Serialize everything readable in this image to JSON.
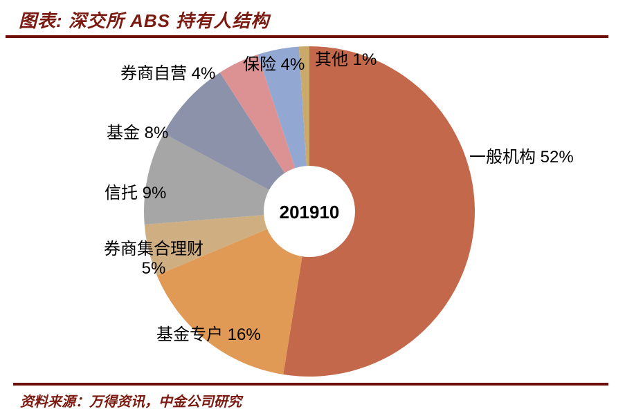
{
  "header": {
    "title": "图表: 深交所 ABS 持有人结构"
  },
  "footer": {
    "source": "资料来源：万得资讯，中金公司研究"
  },
  "colors": {
    "accent_maroon": "#7b1a10",
    "rule_maroon": "#6e0f08",
    "label_text": "#000000",
    "background": "#ffffff"
  },
  "chart_data": {
    "type": "pie",
    "donut": true,
    "title": "深交所 ABS 持有人结构",
    "center_label": "201910",
    "unit": "%",
    "start_angle_deg": 0,
    "direction": "clockwise",
    "legend_position": "none",
    "slices": [
      {
        "name": "一般机构",
        "value_pct": 52,
        "label": "一般机构 52%",
        "color": "#c4684b"
      },
      {
        "name": "基金专户",
        "value_pct": 16,
        "label": "基金专户 16%",
        "color": "#e19a56"
      },
      {
        "name": "券商集合理财",
        "value_pct": 5,
        "label": "券商集合理财 5%",
        "color": "#cfae82"
      },
      {
        "name": "信托",
        "value_pct": 9,
        "label": "信托 9%",
        "color": "#a6a6a6"
      },
      {
        "name": "基金",
        "value_pct": 8,
        "label": "基金 8%",
        "color": "#8b92a9"
      },
      {
        "name": "券商自营",
        "value_pct": 4,
        "label": "券商自营 4%",
        "color": "#dc9193"
      },
      {
        "name": "保险",
        "value_pct": 4,
        "label": "保险 4%",
        "color": "#92a8d3"
      },
      {
        "name": "其他",
        "value_pct": 1,
        "label": "其他 1%",
        "color": "#cba96b"
      }
    ]
  }
}
